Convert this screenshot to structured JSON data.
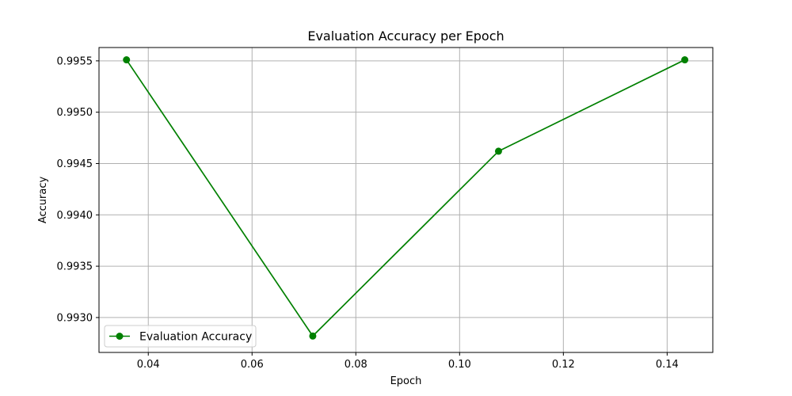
{
  "chart_data": {
    "type": "line",
    "title": "Evaluation Accuracy per Epoch",
    "xlabel": "Epoch",
    "ylabel": "Accuracy",
    "xlim": [
      0.0305,
      0.1488
    ],
    "ylim": [
      0.99266,
      0.99563
    ],
    "xticks": [
      0.04,
      0.06,
      0.08,
      0.1,
      0.12,
      0.14
    ],
    "xtick_labels": [
      "0.04",
      "0.06",
      "0.08",
      "0.10",
      "0.12",
      "0.14"
    ],
    "yticks": [
      0.993,
      0.9935,
      0.994,
      0.9945,
      0.995,
      0.9955
    ],
    "ytick_labels": [
      "0.9930",
      "0.9935",
      "0.9940",
      "0.9945",
      "0.9950",
      "0.9955"
    ],
    "grid": true,
    "legend_position": "lower-left",
    "series": [
      {
        "name": "Evaluation Accuracy",
        "color": "#008000",
        "marker": "circle",
        "x": [
          0.0358,
          0.0717,
          0.1075,
          0.1434
        ],
        "y": [
          0.99551,
          0.99282,
          0.99462,
          0.99551
        ]
      }
    ]
  }
}
